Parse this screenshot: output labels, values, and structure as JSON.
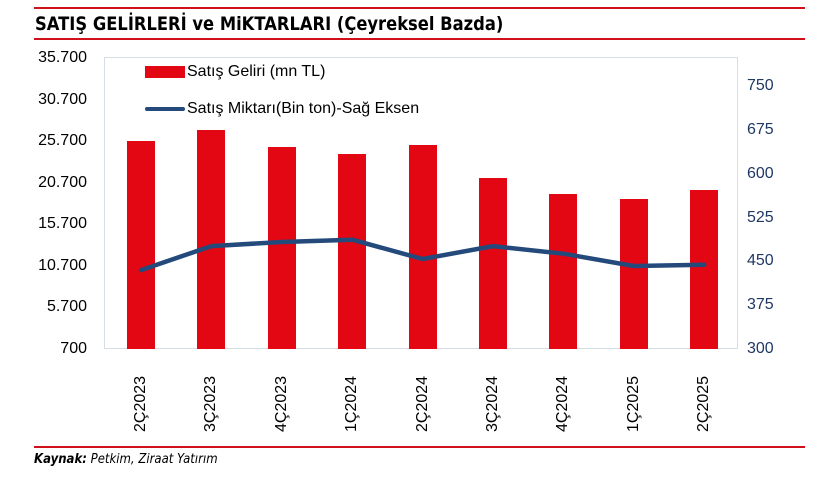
{
  "header": {
    "title": "SATIŞ GELİRLERİ ve MiKTARLARI (Çeyreksel Bazda)"
  },
  "footer": {
    "source_label": "Kaynak:",
    "source_text": " Petkim, Ziraat Yatırım"
  },
  "colors": {
    "bar": "#e30613",
    "line": "#244a7c",
    "rule": "#d0101b",
    "right_axis_text": "#1f3864"
  },
  "chart_data": {
    "type": "bar",
    "title": "SATIŞ GELİRLERİ ve MiKTARLARI (Çeyreksel Bazda)",
    "categories": [
      "2Ç2023",
      "3Ç2023",
      "4Ç2023",
      "1Ç2024",
      "2Ç2024",
      "3Ç2024",
      "4Ç2024",
      "1Ç2025",
      "2Ç2025"
    ],
    "series": [
      {
        "name": "Satış Geliri (mn TL)",
        "type": "bar",
        "axis": "left",
        "values": [
          25700,
          27000,
          25000,
          24200,
          25200,
          21300,
          19300,
          18700,
          19800
        ]
      },
      {
        "name": "Satış Miktarı(Bin ton)-Sağ Eksen",
        "type": "line",
        "axis": "right",
        "values": [
          435,
          476,
          483,
          487,
          454,
          476,
          463,
          442,
          444
        ]
      }
    ],
    "left_axis": {
      "ticks": [
        "35.700",
        "30.700",
        "25.700",
        "20.700",
        "15.700",
        "10.700",
        "5.700",
        "700"
      ],
      "ylim": [
        700,
        35700
      ]
    },
    "right_axis": {
      "ticks": [
        "750",
        "675",
        "600",
        "525",
        "450",
        "375",
        "300"
      ],
      "ylim": [
        300,
        750
      ]
    },
    "xlabel": "",
    "ylabel": "",
    "grid": false,
    "legend_position": "top-left inside"
  }
}
